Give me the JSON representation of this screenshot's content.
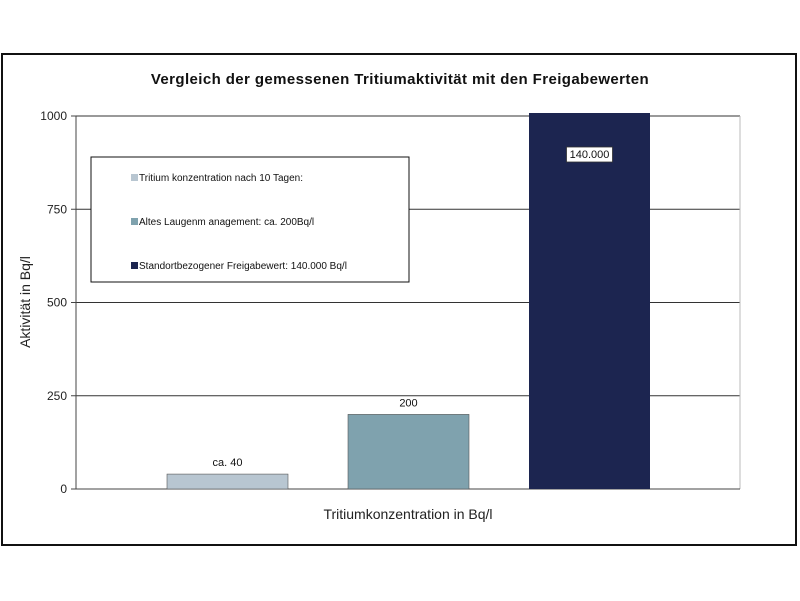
{
  "chart_data": {
    "type": "bar",
    "title": "Vergleich der gemessenen Tritiumaktivität mit den Freigabewerten",
    "xlabel": "Tritiumkonzentration in Bq/l",
    "ylabel": "Aktivität in Bq/l",
    "ylim": [
      0,
      1000
    ],
    "yticks": [
      "0",
      "250",
      "500",
      "750",
      "1000"
    ],
    "grid": true,
    "legend_position": "upper-left inside plot",
    "series": [
      {
        "name": "Tritium konzentration nach 10 Tagen:",
        "value": 40,
        "label": "ca. 40",
        "color": "#b8c6d1"
      },
      {
        "name": "Altes Laugenm anagement: ca. 200Bq/l",
        "value": 200,
        "label": "200",
        "color": "#7fa2ae"
      },
      {
        "name": "Standortbezogener Freigabewert: 140.000 Bq/l",
        "value": 140000,
        "label": "140.000",
        "color": "#1c2550"
      }
    ]
  }
}
